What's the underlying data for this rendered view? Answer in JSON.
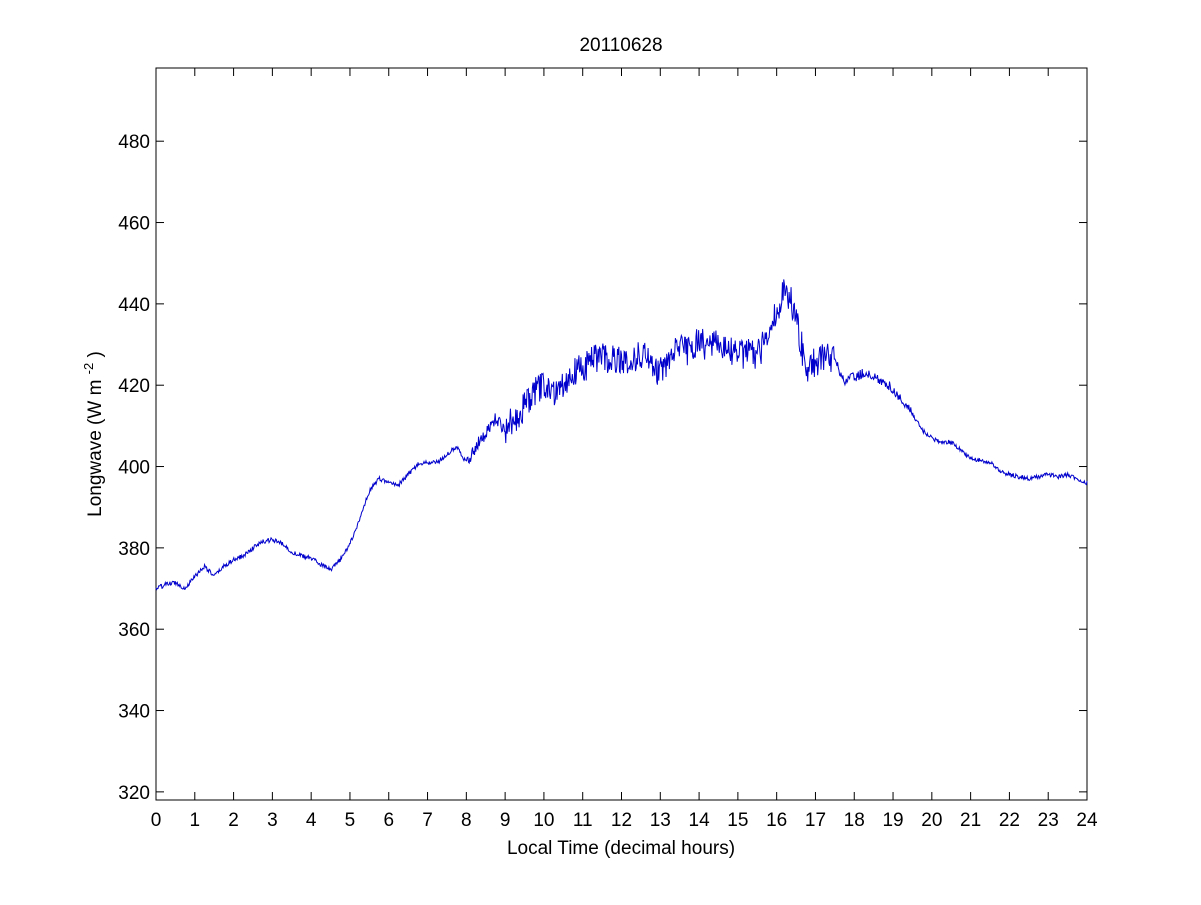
{
  "chart_data": {
    "type": "line",
    "title": "20110628",
    "xlabel": "Local Time (decimal hours)",
    "ylabel": {
      "text": "Longwave (W m",
      "superscript": "-2",
      "suffix": ")"
    },
    "xlim": [
      0,
      24
    ],
    "ylim": [
      318,
      498
    ],
    "xticks": [
      0,
      1,
      2,
      3,
      4,
      5,
      6,
      7,
      8,
      9,
      10,
      11,
      12,
      13,
      14,
      15,
      16,
      17,
      18,
      19,
      20,
      21,
      22,
      23,
      24
    ],
    "yticks": [
      320,
      340,
      360,
      380,
      400,
      420,
      440,
      460,
      480
    ],
    "grid": false,
    "line_color": "#0000cc",
    "series": [
      {
        "x": [
          0,
          0.25,
          0.5,
          0.75,
          1,
          1.25,
          1.5,
          1.75,
          2,
          2.25,
          2.5,
          2.75,
          3,
          3.25,
          3.5,
          3.75,
          4,
          4.25,
          4.5,
          4.75,
          5,
          5.25,
          5.5,
          5.75,
          6,
          6.25,
          6.5,
          6.75,
          7,
          7.25,
          7.5,
          7.75,
          8,
          8.25,
          8.5,
          8.75,
          9,
          9.25,
          9.5,
          9.75,
          10,
          10.25,
          10.5,
          10.75,
          11,
          11.25,
          11.5,
          11.75,
          12,
          12.25,
          12.5,
          12.75,
          13,
          13.25,
          13.5,
          13.75,
          14,
          14.25,
          14.5,
          14.75,
          15,
          15.25,
          15.5,
          15.75,
          16,
          16.25,
          16.5,
          16.75,
          17,
          17.25,
          17.5,
          17.75,
          18,
          18.25,
          18.5,
          18.75,
          19,
          19.25,
          19.5,
          19.75,
          20,
          20.25,
          20.5,
          20.75,
          21,
          21.25,
          21.5,
          21.75,
          22,
          22.25,
          22.5,
          22.75,
          23,
          23.25,
          23.5,
          23.75,
          24
        ],
        "y": [
          370,
          371,
          371.5,
          370,
          373,
          375.5,
          373,
          375.5,
          377,
          378,
          380,
          381.5,
          382,
          381,
          379,
          378,
          377.5,
          376,
          374.5,
          377,
          381,
          387,
          394,
          397,
          396,
          395.5,
          398,
          400.5,
          401,
          401,
          403,
          405,
          401,
          405,
          408,
          412,
          409,
          412,
          415,
          418,
          420,
          418,
          421,
          423,
          424,
          426,
          427,
          426,
          427,
          425,
          428,
          426,
          423,
          427,
          429,
          428,
          431,
          429,
          430,
          429,
          427,
          428,
          427,
          432,
          438,
          444,
          437,
          424,
          426,
          427,
          426,
          421,
          422,
          423,
          422,
          421,
          419,
          416,
          413,
          409,
          407,
          406,
          406,
          404,
          402,
          401.5,
          401,
          399,
          398,
          397.5,
          397,
          397.5,
          398,
          397.5,
          398,
          397,
          396
        ]
      }
    ]
  }
}
